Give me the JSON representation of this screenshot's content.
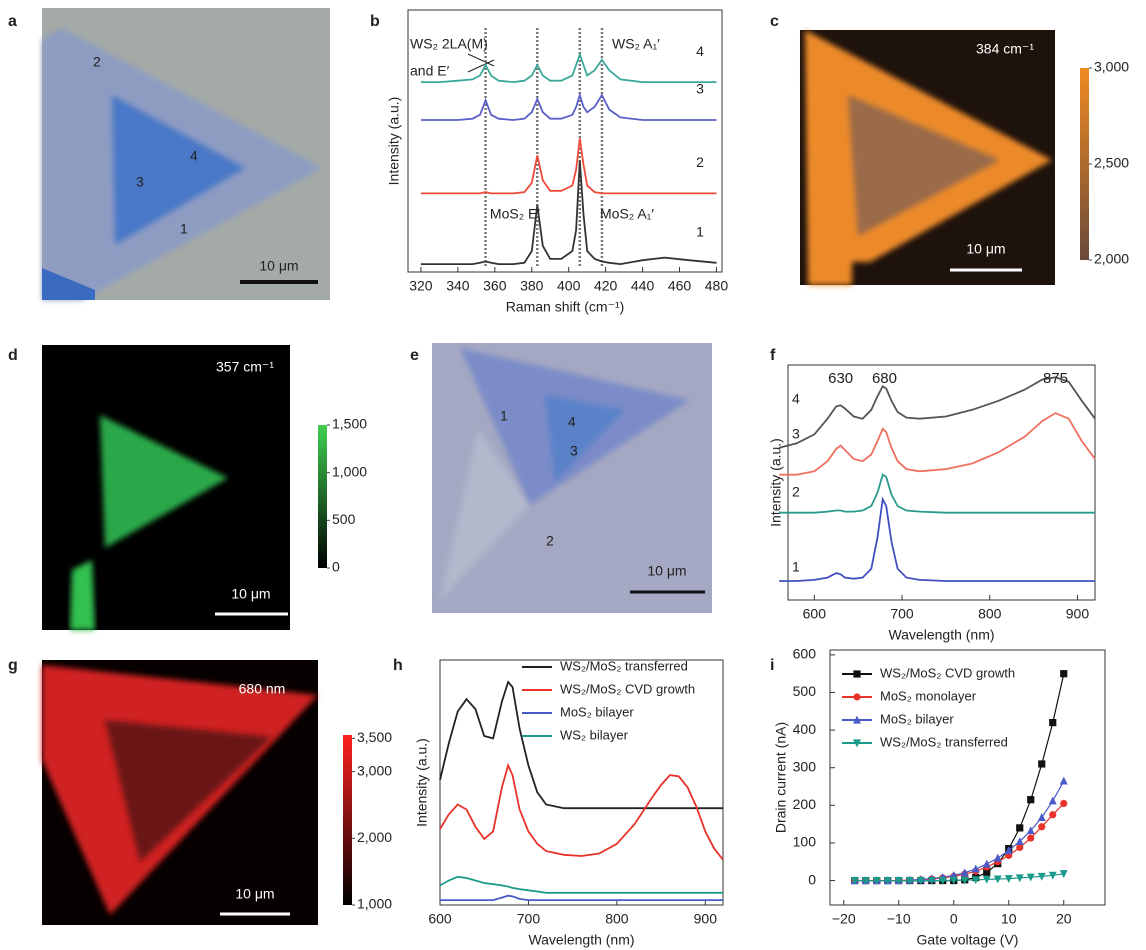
{
  "chart_data": [
    {
      "type": "image",
      "label": "a",
      "spot_labels": [
        "1",
        "2",
        "3",
        "4"
      ],
      "scale_bar": "10 μm"
    },
    {
      "type": "line",
      "label": "b",
      "xlabel": "Raman shift (cm⁻¹)",
      "ylabel": "Intensity (a.u.)",
      "xlim": [
        313,
        483
      ],
      "xticks": [
        320,
        340,
        360,
        380,
        400,
        420,
        440,
        460,
        480
      ],
      "ylim": [
        0,
        10
      ],
      "x": [
        320,
        330,
        340,
        348,
        352,
        355,
        358,
        362,
        370,
        376,
        380,
        383,
        386,
        390,
        396,
        402,
        404,
        406,
        408,
        410,
        414,
        418,
        422,
        428,
        440,
        452,
        465,
        480
      ],
      "guides": [
        355,
        383,
        406,
        418
      ],
      "series": [
        {
          "name": "1",
          "color": "#333333",
          "values": [
            0.3,
            0.3,
            0.3,
            0.3,
            0.35,
            0.4,
            0.35,
            0.3,
            0.3,
            0.35,
            0.8,
            2.55,
            1.0,
            0.5,
            0.5,
            0.8,
            1.6,
            4.25,
            2.2,
            0.8,
            0.5,
            0.4,
            0.35,
            0.3,
            0.45,
            0.55,
            0.45,
            0.35
          ]
        },
        {
          "name": "2",
          "color": "#f04a3a",
          "values": [
            3.0,
            3.0,
            3.0,
            3.0,
            3.0,
            3.05,
            3.0,
            3.0,
            3.0,
            3.05,
            3.4,
            4.45,
            3.5,
            3.1,
            3.1,
            3.3,
            3.9,
            5.1,
            4.1,
            3.3,
            3.05,
            3.0,
            3.0,
            3.0,
            3.0,
            3.0,
            3.0,
            3.0
          ]
        },
        {
          "name": "3",
          "color": "#5a60c8",
          "values": [
            5.8,
            5.8,
            5.8,
            5.85,
            6.0,
            6.55,
            6.0,
            5.85,
            5.8,
            5.85,
            6.1,
            6.6,
            6.1,
            5.85,
            5.85,
            6.0,
            6.3,
            6.75,
            6.3,
            6.1,
            6.3,
            6.75,
            6.2,
            5.9,
            5.8,
            5.8,
            5.8,
            5.8
          ]
        },
        {
          "name": "4",
          "color": "#3aa89a",
          "values": [
            7.25,
            7.25,
            7.3,
            7.35,
            7.5,
            7.9,
            7.5,
            7.3,
            7.25,
            7.3,
            7.5,
            7.9,
            7.5,
            7.3,
            7.3,
            7.5,
            7.9,
            8.3,
            7.9,
            7.5,
            7.7,
            8.1,
            7.7,
            7.35,
            7.25,
            7.25,
            7.25,
            7.25
          ]
        }
      ],
      "annotations": [
        {
          "text": "WS₂ 2LA(M)",
          "color": "#222222"
        },
        {
          "text": "and E′",
          "color": "#222222"
        },
        {
          "text": "MoS₂ E′",
          "color": "#e8322a"
        },
        {
          "text": "MoS₂ A₁′",
          "color": "#e8322a"
        },
        {
          "text": "WS₂ A₁′",
          "color": "#e8322a"
        }
      ]
    },
    {
      "type": "image",
      "label": "c",
      "annotation": "384 cm⁻¹",
      "scale_bar": "10 μm",
      "colorbar": {
        "lim": [
          2000,
          3000
        ],
        "ticks": [
          {
            "value": 3000,
            "label": "3,000"
          },
          {
            "value": 2500,
            "label": "2,500"
          },
          {
            "value": 2000,
            "label": "2,000"
          }
        ]
      }
    },
    {
      "type": "image",
      "label": "d",
      "annotation": "357 cm⁻¹",
      "scale_bar": "10 μm",
      "colorbar": {
        "lim": [
          0,
          1500
        ],
        "ticks": [
          {
            "value": 1500,
            "label": "1,500"
          },
          {
            "value": 1000,
            "label": "1,000"
          },
          500,
          0
        ]
      }
    },
    {
      "type": "image",
      "label": "e",
      "spot_labels": [
        "1",
        "2",
        "3",
        "4"
      ],
      "scale_bar": "10 μm"
    },
    {
      "type": "line",
      "label": "f",
      "xlabel": "Wavelength (nm)",
      "ylabel": "Intensity (a.u.)",
      "xlim": [
        570,
        920
      ],
      "xticks": [
        600,
        700,
        800,
        900
      ],
      "ylim": [
        0,
        10.5
      ],
      "peaks": [
        630,
        680,
        875
      ],
      "peak_color": "#e8322a",
      "x": [
        560,
        580,
        600,
        615,
        625,
        630,
        635,
        645,
        655,
        665,
        672,
        678,
        682,
        688,
        695,
        705,
        720,
        750,
        780,
        810,
        840,
        860,
        875,
        890,
        905,
        920
      ],
      "series": [
        {
          "name": "1",
          "color": "#4050c0",
          "values": [
            0.85,
            0.85,
            0.9,
            1.0,
            1.2,
            1.15,
            1.0,
            0.95,
            1.0,
            1.4,
            2.8,
            4.5,
            4.2,
            2.6,
            1.4,
            1.0,
            0.9,
            0.85,
            0.85,
            0.85,
            0.85,
            0.85,
            0.85,
            0.85,
            0.85,
            0.85
          ]
        },
        {
          "name": "2",
          "color": "#2a9a8a",
          "values": [
            3.9,
            3.9,
            3.9,
            3.95,
            4.0,
            4.0,
            3.95,
            3.95,
            4.0,
            4.2,
            4.8,
            5.6,
            5.5,
            4.7,
            4.2,
            4.0,
            3.95,
            3.9,
            3.9,
            3.9,
            3.9,
            3.9,
            3.9,
            3.9,
            3.9,
            3.9
          ]
        },
        {
          "name": "3",
          "color": "#f07060",
          "values": [
            5.6,
            5.6,
            5.75,
            6.2,
            6.75,
            6.9,
            6.7,
            6.3,
            6.2,
            6.5,
            7.1,
            7.65,
            7.5,
            6.8,
            6.2,
            5.85,
            5.75,
            5.85,
            6.1,
            6.6,
            7.3,
            8.0,
            8.35,
            8.1,
            7.1,
            6.3
          ]
        },
        {
          "name": "4",
          "color": "#555555",
          "values": [
            6.8,
            7.0,
            7.4,
            8.1,
            8.65,
            8.7,
            8.55,
            8.2,
            8.1,
            8.5,
            9.1,
            9.55,
            9.45,
            8.9,
            8.4,
            8.15,
            8.1,
            8.2,
            8.5,
            8.9,
            9.4,
            9.85,
            9.95,
            9.75,
            8.9,
            8.1
          ]
        }
      ]
    },
    {
      "type": "image",
      "label": "g",
      "annotation": "680 nm",
      "scale_bar": "10 μm",
      "colorbar": {
        "lim": [
          1000,
          3550
        ],
        "ticks": [
          {
            "value": 3500,
            "label": "3,500"
          },
          {
            "value": 3000,
            "label": "3,000"
          },
          {
            "value": 2000,
            "label": "2,000"
          },
          {
            "value": 1000,
            "label": "1,000"
          }
        ]
      }
    },
    {
      "type": "line",
      "label": "h",
      "xlabel": "Wavelength (nm)",
      "ylabel": "Intensity (a.u.)",
      "legend": "upper right",
      "xlim": [
        600,
        920
      ],
      "xticks": [
        600,
        700,
        800,
        900
      ],
      "ylim": [
        0,
        10
      ],
      "x": [
        600,
        610,
        620,
        630,
        640,
        650,
        660,
        670,
        677,
        682,
        690,
        700,
        710,
        720,
        740,
        760,
        780,
        800,
        820,
        840,
        850,
        860,
        870,
        880,
        890,
        900,
        910,
        920
      ],
      "series": [
        {
          "name": "WS₂/MoS₂ transferred",
          "color": "#222222",
          "values": [
            5.1,
            6.6,
            7.9,
            8.4,
            8.0,
            6.9,
            6.8,
            8.3,
            9.1,
            8.9,
            7.2,
            5.7,
            4.6,
            4.1,
            3.95,
            3.95,
            3.95,
            3.95,
            3.95,
            3.95,
            3.95,
            3.95,
            3.95,
            3.95,
            3.95,
            3.95,
            3.95,
            3.95
          ]
        },
        {
          "name": "WS₂/MoS₂ CVD growth",
          "color": "#e8322a",
          "values": [
            3.1,
            3.7,
            4.1,
            3.9,
            3.2,
            2.7,
            3.0,
            4.8,
            5.7,
            5.3,
            3.9,
            3.0,
            2.5,
            2.2,
            2.05,
            2.0,
            2.1,
            2.5,
            3.3,
            4.4,
            4.9,
            5.3,
            5.25,
            4.8,
            4.0,
            3.0,
            2.3,
            1.85
          ]
        },
        {
          "name": "MoS₂ bilayer",
          "color": "#4a5ac8",
          "values": [
            0.2,
            0.2,
            0.2,
            0.2,
            0.2,
            0.2,
            0.2,
            0.3,
            0.38,
            0.35,
            0.25,
            0.2,
            0.2,
            0.2,
            0.2,
            0.2,
            0.2,
            0.2,
            0.2,
            0.2,
            0.2,
            0.2,
            0.2,
            0.2,
            0.2,
            0.2,
            0.2,
            0.2
          ]
        },
        {
          "name": "WS₂ bilayer",
          "color": "#1a9a8a",
          "values": [
            0.8,
            1.0,
            1.15,
            1.1,
            1.0,
            0.9,
            0.85,
            0.8,
            0.75,
            0.7,
            0.65,
            0.6,
            0.55,
            0.5,
            0.5,
            0.5,
            0.5,
            0.5,
            0.5,
            0.5,
            0.5,
            0.5,
            0.5,
            0.5,
            0.5,
            0.5,
            0.5,
            0.5
          ]
        }
      ]
    },
    {
      "type": "scatter",
      "label": "i",
      "xlabel": "Gate voltage (V)",
      "ylabel": "Drain current (nA)",
      "legend": "upper left",
      "xlim": [
        -22.5,
        27.5
      ],
      "xticks": [
        {
          "value": -20,
          "label": "−20"
        },
        {
          "value": -10,
          "label": "−10"
        },
        0,
        10,
        20
      ],
      "ylim": [
        -65,
        613
      ],
      "yticks": [
        0,
        100,
        200,
        300,
        400,
        500,
        600
      ],
      "x": [
        -18,
        -16,
        -14,
        -12,
        -10,
        -8,
        -6,
        -4,
        -2,
        0,
        2,
        4,
        6,
        8,
        10,
        12,
        14,
        16,
        18,
        20
      ],
      "series": [
        {
          "name": "WS₂/MoS₂ CVD growth",
          "color": "#111111",
          "marker": "square",
          "values": [
            0,
            0,
            0,
            0,
            0,
            0,
            0,
            0,
            0,
            0,
            2,
            8,
            22,
            45,
            85,
            140,
            215,
            310,
            420,
            550
          ]
        },
        {
          "name": "MoS₂ monolayer",
          "color": "#e8322a",
          "marker": "circle",
          "values": [
            0,
            0,
            0,
            0,
            0,
            1,
            2,
            4,
            7,
            11,
            17,
            25,
            36,
            50,
            67,
            88,
            113,
            143,
            175,
            205
          ]
        },
        {
          "name": "MoS₂ bilayer",
          "color": "#4a5ac8",
          "marker": "triangle",
          "values": [
            0,
            0,
            0,
            0,
            0,
            1,
            3,
            5,
            9,
            14,
            21,
            31,
            44,
            60,
            80,
            104,
            133,
            168,
            212,
            265
          ]
        },
        {
          "name": "WS₂/MoS₂ transferred",
          "color": "#1a9a8a",
          "marker": "triangle-down",
          "values": [
            0,
            0,
            0,
            0,
            0,
            0,
            0,
            0,
            0,
            1,
            1,
            2,
            3,
            4,
            5,
            7,
            9,
            11,
            14,
            18
          ]
        }
      ]
    }
  ]
}
